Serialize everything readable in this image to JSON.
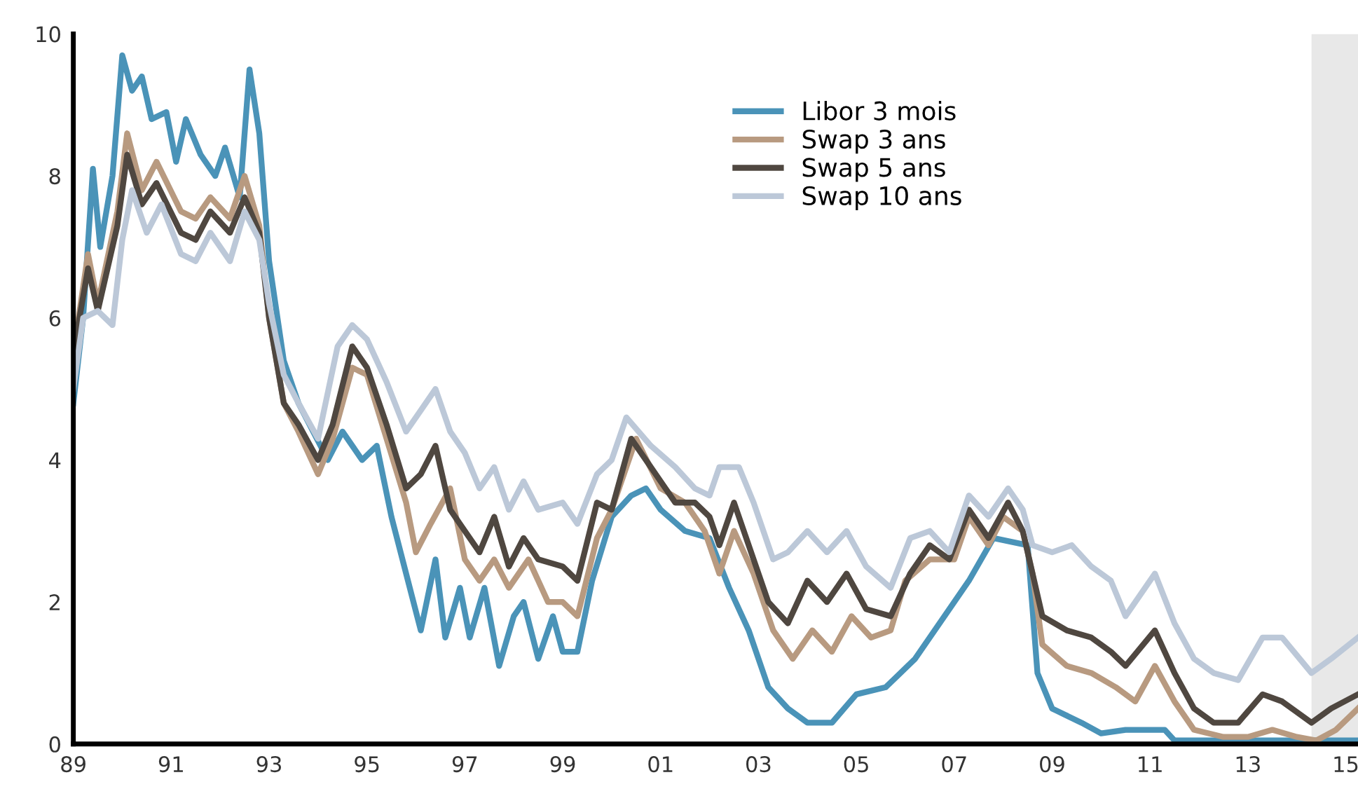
{
  "chart_data": {
    "type": "line",
    "xlim": [
      1989,
      2015.25
    ],
    "ylim": [
      0,
      10
    ],
    "xticks": [
      {
        "value": 1989,
        "label": "89"
      },
      {
        "value": 1991,
        "label": "91"
      },
      {
        "value": 1993,
        "label": "93"
      },
      {
        "value": 1995,
        "label": "95"
      },
      {
        "value": 1997,
        "label": "97"
      },
      {
        "value": 1999,
        "label": "99"
      },
      {
        "value": 2001,
        "label": "01"
      },
      {
        "value": 2003,
        "label": "03"
      },
      {
        "value": 2005,
        "label": "05"
      },
      {
        "value": 2007,
        "label": "07"
      },
      {
        "value": 2009,
        "label": "09"
      },
      {
        "value": 2011,
        "label": "11"
      },
      {
        "value": 2013,
        "label": "13"
      },
      {
        "value": 2015,
        "label": "15"
      }
    ],
    "yticks": [
      0,
      2,
      4,
      6,
      8,
      10
    ],
    "grid": false,
    "legend": "top right",
    "marker": "none",
    "line_style": "solid",
    "bands": [
      {
        "axis": "x",
        "from": 2014.3,
        "to": 2015.25,
        "color": "#e8e8e8"
      }
    ],
    "series": [
      {
        "name": "Libor 3 mois",
        "color": "#4a93b8",
        "x": [
          1989.0,
          1989.2,
          1989.4,
          1989.55,
          1989.8,
          1990.0,
          1990.2,
          1990.4,
          1990.6,
          1990.9,
          1991.1,
          1991.3,
          1991.6,
          1991.9,
          1992.1,
          1992.4,
          1992.6,
          1992.8,
          1993.0,
          1993.3,
          1993.6,
          1993.9,
          1994.2,
          1994.5,
          1994.9,
          1995.2,
          1995.5,
          1995.8,
          1996.1,
          1996.4,
          1996.6,
          1996.9,
          1997.1,
          1997.4,
          1997.7,
          1998.0,
          1998.2,
          1998.5,
          1998.8,
          1999.0,
          1999.3,
          1999.6,
          2000.0,
          2000.4,
          2000.7,
          2001.0,
          2001.5,
          2002.0,
          2002.4,
          2002.8,
          2003.2,
          2003.6,
          2004.0,
          2004.5,
          2005.0,
          2005.6,
          2006.2,
          2006.8,
          2007.3,
          2007.8,
          2008.5,
          2008.7,
          2009.0,
          2009.6,
          2010.0,
          2010.5,
          2011.3,
          2011.5,
          2012.0,
          2015.25
        ],
        "values": [
          4.8,
          6.0,
          8.1,
          7.0,
          8.0,
          9.7,
          9.2,
          9.4,
          8.8,
          8.9,
          8.2,
          8.8,
          8.3,
          8.0,
          8.4,
          7.7,
          9.5,
          8.6,
          6.8,
          5.4,
          4.8,
          4.4,
          4.0,
          4.4,
          4.0,
          4.2,
          3.2,
          2.4,
          1.6,
          2.6,
          1.5,
          2.2,
          1.5,
          2.2,
          1.1,
          1.8,
          2.0,
          1.2,
          1.8,
          1.3,
          1.3,
          2.3,
          3.2,
          3.5,
          3.6,
          3.3,
          3.0,
          2.9,
          2.2,
          1.6,
          0.8,
          0.5,
          0.3,
          0.3,
          0.7,
          0.8,
          1.2,
          1.8,
          2.3,
          2.9,
          2.8,
          1.0,
          0.5,
          0.3,
          0.15,
          0.2,
          0.2,
          0.05,
          0.05,
          0.05
        ]
      },
      {
        "name": "Swap 3 ans",
        "color": "#b89a80",
        "x": [
          1989.0,
          1989.3,
          1989.5,
          1989.9,
          1990.1,
          1990.4,
          1990.7,
          1991.2,
          1991.5,
          1991.8,
          1992.2,
          1992.5,
          1992.8,
          1993.0,
          1993.3,
          1993.6,
          1994.0,
          1994.3,
          1994.7,
          1995.0,
          1995.4,
          1995.8,
          1996.0,
          1996.3,
          1996.7,
          1997.0,
          1997.3,
          1997.6,
          1997.9,
          1998.3,
          1998.7,
          1999.0,
          1999.3,
          1999.7,
          2000.0,
          2000.5,
          2001.0,
          2001.5,
          2001.9,
          2002.2,
          2002.5,
          2002.9,
          2003.3,
          2003.7,
          2004.1,
          2004.5,
          2004.9,
          2005.3,
          2005.7,
          2006.0,
          2006.5,
          2007.0,
          2007.3,
          2007.7,
          2008.0,
          2008.4,
          2008.6,
          2008.8,
          2009.3,
          2009.8,
          2010.3,
          2010.7,
          2011.1,
          2011.5,
          2011.9,
          2012.5,
          2013.0,
          2013.5,
          2014.0,
          2014.4,
          2014.8,
          2015.25
        ],
        "values": [
          5.5,
          6.9,
          6.2,
          7.5,
          8.6,
          7.8,
          8.2,
          7.5,
          7.4,
          7.7,
          7.4,
          8.0,
          7.3,
          6.0,
          4.8,
          4.4,
          3.8,
          4.3,
          5.3,
          5.2,
          4.3,
          3.4,
          2.7,
          3.1,
          3.6,
          2.6,
          2.3,
          2.6,
          2.2,
          2.6,
          2.0,
          2.0,
          1.8,
          2.9,
          3.3,
          4.3,
          3.6,
          3.4,
          3.0,
          2.4,
          3.0,
          2.4,
          1.6,
          1.2,
          1.6,
          1.3,
          1.8,
          1.5,
          1.6,
          2.3,
          2.6,
          2.6,
          3.2,
          2.8,
          3.2,
          3.0,
          2.4,
          1.4,
          1.1,
          1.0,
          0.8,
          0.6,
          1.1,
          0.6,
          0.2,
          0.1,
          0.1,
          0.2,
          0.1,
          0.05,
          0.2,
          0.5
        ]
      },
      {
        "name": "Swap 5 ans",
        "color": "#4f4740",
        "x": [
          1989.0,
          1989.3,
          1989.5,
          1989.9,
          1990.1,
          1990.4,
          1990.7,
          1991.2,
          1991.5,
          1991.8,
          1992.2,
          1992.5,
          1992.8,
          1993.0,
          1993.3,
          1993.6,
          1994.0,
          1994.3,
          1994.7,
          1995.0,
          1995.4,
          1995.8,
          1996.1,
          1996.4,
          1996.7,
          1997.0,
          1997.3,
          1997.6,
          1997.9,
          1998.2,
          1998.5,
          1999.0,
          1999.3,
          1999.7,
          2000.0,
          2000.4,
          2000.8,
          2001.3,
          2001.7,
          2002.0,
          2002.2,
          2002.5,
          2002.9,
          2003.2,
          2003.6,
          2004.0,
          2004.4,
          2004.8,
          2005.2,
          2005.7,
          2006.1,
          2006.5,
          2006.9,
          2007.3,
          2007.7,
          2008.1,
          2008.4,
          2008.6,
          2008.8,
          2009.3,
          2009.8,
          2010.2,
          2010.5,
          2011.1,
          2011.5,
          2011.9,
          2012.3,
          2012.8,
          2013.3,
          2013.7,
          2014.3,
          2014.7,
          2015.25
        ],
        "values": [
          5.5,
          6.7,
          6.1,
          7.3,
          8.3,
          7.6,
          7.9,
          7.2,
          7.1,
          7.5,
          7.2,
          7.7,
          7.2,
          6.0,
          4.8,
          4.5,
          4.0,
          4.5,
          5.6,
          5.3,
          4.5,
          3.6,
          3.8,
          4.2,
          3.3,
          3.0,
          2.7,
          3.2,
          2.5,
          2.9,
          2.6,
          2.5,
          2.3,
          3.4,
          3.3,
          4.3,
          3.9,
          3.4,
          3.4,
          3.2,
          2.8,
          3.4,
          2.6,
          2.0,
          1.7,
          2.3,
          2.0,
          2.4,
          1.9,
          1.8,
          2.4,
          2.8,
          2.6,
          3.3,
          2.9,
          3.4,
          3.0,
          2.4,
          1.8,
          1.6,
          1.5,
          1.3,
          1.1,
          1.6,
          1.0,
          0.5,
          0.3,
          0.3,
          0.7,
          0.6,
          0.3,
          0.5,
          0.7
        ]
      },
      {
        "name": "Swap 10 ans",
        "color": "#bcc8d8",
        "x": [
          1989.0,
          1989.2,
          1989.5,
          1989.8,
          1990.0,
          1990.2,
          1990.5,
          1990.8,
          1991.2,
          1991.5,
          1991.8,
          1992.2,
          1992.5,
          1992.8,
          1993.0,
          1993.3,
          1993.6,
          1994.0,
          1994.4,
          1994.7,
          1995.0,
          1995.4,
          1995.8,
          1996.1,
          1996.4,
          1996.7,
          1997.0,
          1997.3,
          1997.6,
          1997.9,
          1998.2,
          1998.5,
          1999.0,
          1999.3,
          1999.7,
          2000.0,
          2000.3,
          2000.8,
          2001.3,
          2001.7,
          2002.0,
          2002.2,
          2002.6,
          2002.9,
          2003.3,
          2003.6,
          2004.0,
          2004.4,
          2004.8,
          2005.2,
          2005.7,
          2006.1,
          2006.5,
          2006.9,
          2007.3,
          2007.7,
          2008.1,
          2008.4,
          2008.6,
          2009.0,
          2009.4,
          2009.8,
          2010.2,
          2010.5,
          2011.1,
          2011.5,
          2011.9,
          2012.3,
          2012.8,
          2013.3,
          2013.7,
          2014.3,
          2014.7,
          2015.25
        ],
        "values": [
          5.0,
          6.0,
          6.1,
          5.9,
          7.1,
          7.8,
          7.2,
          7.6,
          6.9,
          6.8,
          7.2,
          6.8,
          7.5,
          7.1,
          6.2,
          5.2,
          4.8,
          4.3,
          5.6,
          5.9,
          5.7,
          5.1,
          4.4,
          4.7,
          5.0,
          4.4,
          4.1,
          3.6,
          3.9,
          3.3,
          3.7,
          3.3,
          3.4,
          3.1,
          3.8,
          4.0,
          4.6,
          4.2,
          3.9,
          3.6,
          3.5,
          3.9,
          3.9,
          3.4,
          2.6,
          2.7,
          3.0,
          2.7,
          3.0,
          2.5,
          2.2,
          2.9,
          3.0,
          2.7,
          3.5,
          3.2,
          3.6,
          3.3,
          2.8,
          2.7,
          2.8,
          2.5,
          2.3,
          1.8,
          2.4,
          1.7,
          1.2,
          1.0,
          0.9,
          1.5,
          1.5,
          1.0,
          1.2,
          1.5
        ]
      }
    ]
  }
}
